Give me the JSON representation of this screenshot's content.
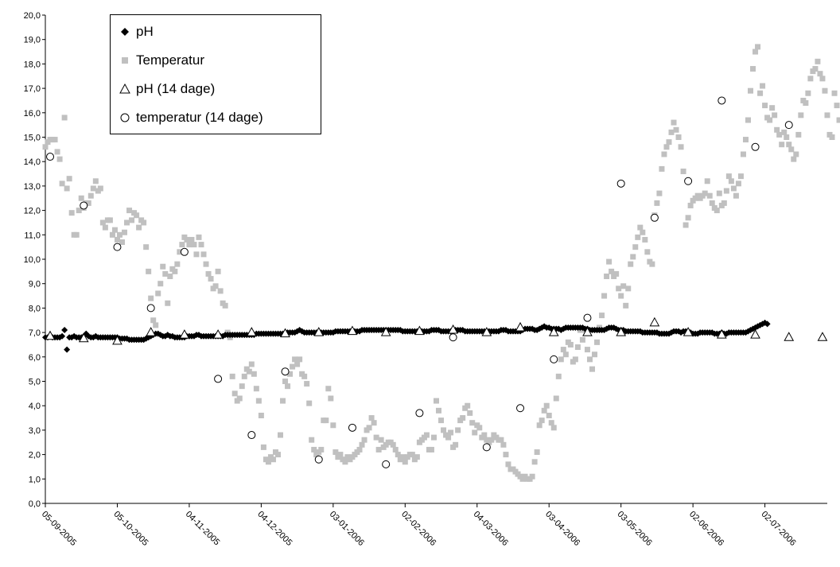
{
  "chart_data": {
    "type": "scatter",
    "ylim": [
      0,
      20
    ],
    "yticks": [
      "0,0",
      "1,0",
      "2,0",
      "3,0",
      "4,0",
      "5,0",
      "6,0",
      "7,0",
      "8,0",
      "9,0",
      "10,0",
      "11,0",
      "12,0",
      "13,0",
      "14,0",
      "15,0",
      "16,0",
      "17,0",
      "18,0",
      "19,0",
      "20,0"
    ],
    "xlim": [
      "2005-09-05",
      "2006-07-28"
    ],
    "xticks": [
      "05-09-2005",
      "05-10-2005",
      "04-11-2005",
      "04-12-2005",
      "03-01-2006",
      "02-02-2006",
      "04-03-2006",
      "03-04-2006",
      "03-05-2006",
      "02-06-2006",
      "02-07-2006"
    ],
    "legend_position": "top-left",
    "colors": {
      "ph": "#000000",
      "temperatur": "#c0c0c0",
      "ph14": "#000000",
      "temp14": "#000000"
    },
    "series": [
      {
        "name": "pH",
        "marker": "diamond",
        "x_start": "2005-09-05",
        "x_step_days": 1,
        "values": [
          6.8,
          6.8,
          6.85,
          6.8,
          6.8,
          6.8,
          6.8,
          6.85,
          7.1,
          6.3,
          6.8,
          6.8,
          6.85,
          6.8,
          6.8,
          6.8,
          6.85,
          6.95,
          6.85,
          6.8,
          6.8,
          6.85,
          6.8,
          6.8,
          6.8,
          6.8,
          6.8,
          6.8,
          6.8,
          6.8,
          6.8,
          6.75,
          6.75,
          6.75,
          6.75,
          6.7,
          6.7,
          6.7,
          6.7,
          6.7,
          6.7,
          6.7,
          6.75,
          6.8,
          6.85,
          6.9,
          6.95,
          6.95,
          6.9,
          6.85,
          6.85,
          6.9,
          6.85,
          6.85,
          6.8,
          6.8,
          6.8,
          6.8,
          6.8,
          6.85,
          6.85,
          6.85,
          6.85,
          6.9,
          6.9,
          6.85,
          6.85,
          6.85,
          6.85,
          6.85,
          6.85,
          6.85,
          6.85,
          6.85,
          6.85,
          6.9,
          6.9,
          6.9,
          6.9,
          6.9,
          6.9,
          6.9,
          6.9,
          6.9,
          6.9,
          6.9,
          6.9,
          6.9,
          6.95,
          6.95,
          6.95,
          6.95,
          6.95,
          6.95,
          6.95,
          6.95,
          6.95,
          6.95,
          6.95,
          6.95,
          6.95,
          7.0,
          7.0,
          7.0,
          7.0,
          7.05,
          7.1,
          7.05,
          7.0,
          7.0,
          7.0,
          7.0,
          7.0,
          7.0,
          7.0,
          7.0,
          7.0,
          7.0,
          7.0,
          7.0,
          7.0,
          7.05,
          7.05,
          7.05,
          7.05,
          7.05,
          7.05,
          7.05,
          7.05,
          7.05,
          7.05,
          7.05,
          7.1,
          7.1,
          7.1,
          7.1,
          7.1,
          7.1,
          7.1,
          7.1,
          7.1,
          7.1,
          7.1,
          7.1,
          7.1,
          7.1,
          7.1,
          7.1,
          7.1,
          7.05,
          7.05,
          7.05,
          7.05,
          7.05,
          7.05,
          7.05,
          7.05,
          7.05,
          7.05,
          7.05,
          7.05,
          7.1,
          7.1,
          7.1,
          7.1,
          7.05,
          7.05,
          7.05,
          7.05,
          7.05,
          7.05,
          7.1,
          7.1,
          7.1,
          7.1,
          7.05,
          7.05,
          7.05,
          7.05,
          7.05,
          7.05,
          7.05,
          7.05,
          7.05,
          7.05,
          7.05,
          7.05,
          7.05,
          7.05,
          7.05,
          7.1,
          7.1,
          7.1,
          7.05,
          7.05,
          7.05,
          7.05,
          7.05,
          7.05,
          7.1,
          7.15,
          7.15,
          7.15,
          7.15,
          7.1,
          7.1,
          7.15,
          7.2,
          7.25,
          7.2,
          7.2,
          7.15,
          7.15,
          7.15,
          7.15,
          7.1,
          7.15,
          7.2,
          7.2,
          7.2,
          7.2,
          7.2,
          7.2,
          7.2,
          7.2,
          7.15,
          7.15,
          7.1,
          7.1,
          7.1,
          7.1,
          7.1,
          7.1,
          7.1,
          7.15,
          7.2,
          7.2,
          7.2,
          7.15,
          7.1,
          7.1,
          7.1,
          7.05,
          7.05,
          7.05,
          7.05,
          7.05,
          7.05,
          7.05,
          7.0,
          7.0,
          7.0,
          7.0,
          7.0,
          7.0,
          7.0,
          6.95,
          6.95,
          6.95,
          6.95,
          6.95,
          7.0,
          7.05,
          7.05,
          7.05,
          7.0,
          7.05,
          7.05,
          7.05,
          7.0,
          6.95,
          6.95,
          6.95,
          7.0,
          7.0,
          7.0,
          7.0,
          7.0,
          7.0,
          6.95,
          6.95,
          6.95,
          7.0,
          6.95,
          6.95,
          7.0,
          7.0,
          7.0,
          7.0,
          7.0,
          7.0,
          7.0,
          7.0,
          7.05,
          7.1,
          7.15,
          7.2,
          7.25,
          7.3,
          7.35,
          7.4,
          7.35
        ]
      },
      {
        "name": "Temperatur",
        "marker": "square",
        "x_start": "2005-09-05",
        "x_step_days": 1,
        "values": [
          14.6,
          14.8,
          14.9,
          14.9,
          14.9,
          14.4,
          14.1,
          13.1,
          15.8,
          12.9,
          13.3,
          11.9,
          11.0,
          11.0,
          12.0,
          12.5,
          12.1,
          12.3,
          12.3,
          12.6,
          12.9,
          13.2,
          12.8,
          12.9,
          11.5,
          11.3,
          11.6,
          11.6,
          11.0,
          11.2,
          10.8,
          11.0,
          10.7,
          11.1,
          11.5,
          12.0,
          11.6,
          11.9,
          11.8,
          11.3,
          11.6,
          11.5,
          10.5,
          9.5,
          8.4,
          7.5,
          7.3,
          8.6,
          9.0,
          9.7,
          9.4,
          8.2,
          9.3,
          9.6,
          9.5,
          9.8,
          10.3,
          10.6,
          10.9,
          10.8,
          10.6,
          10.8,
          10.6,
          10.2,
          10.9,
          10.6,
          10.2,
          9.8,
          9.4,
          9.2,
          8.8,
          8.9,
          9.5,
          8.7,
          8.2,
          8.1,
          7.0,
          6.8,
          5.2,
          4.5,
          4.2,
          4.3,
          4.8,
          5.2,
          5.5,
          5.4,
          5.7,
          5.3,
          4.7,
          4.2,
          3.6,
          2.3,
          1.8,
          1.7,
          1.9,
          1.8,
          2.1,
          2.0,
          2.8,
          4.2,
          5.0,
          4.8,
          5.3,
          5.6,
          5.9,
          5.7,
          5.9,
          5.3,
          5.2,
          4.9,
          4.1,
          2.6,
          2.2,
          2.0,
          2.1,
          2.2,
          3.4,
          3.4,
          4.7,
          4.3,
          3.2,
          2.1,
          1.9,
          2.0,
          1.8,
          1.7,
          1.9,
          1.8,
          1.9,
          2.0,
          2.1,
          2.2,
          2.4,
          2.6,
          3.0,
          3.1,
          3.5,
          3.3,
          2.7,
          2.2,
          2.6,
          2.3,
          2.4,
          2.5,
          2.5,
          2.4,
          2.2,
          2.0,
          1.8,
          1.9,
          1.7,
          1.9,
          2.0,
          2.0,
          1.8,
          1.9,
          2.5,
          2.6,
          2.7,
          2.8,
          2.2,
          2.2,
          2.7,
          4.2,
          3.8,
          3.4,
          3.0,
          2.8,
          2.7,
          2.9,
          2.3,
          2.4,
          3.0,
          3.4,
          3.5,
          3.9,
          4.0,
          3.7,
          3.3,
          2.9,
          3.2,
          3.1,
          2.7,
          2.8,
          2.6,
          2.5,
          2.6,
          2.8,
          2.7,
          2.6,
          2.6,
          2.4,
          2.0,
          1.6,
          1.4,
          1.4,
          1.3,
          1.2,
          1.1,
          1.0,
          1.1,
          1.0,
          1.0,
          1.1,
          1.7,
          2.1,
          3.2,
          3.4,
          3.8,
          4.0,
          3.6,
          3.3,
          3.1,
          4.3,
          5.2,
          5.9,
          6.3,
          6.1,
          6.6,
          6.5,
          5.8,
          5.9,
          6.4,
          7.1,
          6.7,
          7.1,
          6.3,
          5.9,
          5.5,
          6.1,
          6.6,
          7.2,
          7.7,
          8.5,
          9.3,
          9.9,
          9.5,
          9.3,
          9.4,
          8.8,
          8.5,
          8.9,
          8.1,
          8.8,
          9.8,
          10.1,
          10.5,
          10.9,
          11.3,
          11.1,
          10.8,
          10.3,
          9.9,
          9.8,
          11.8,
          12.3,
          12.7,
          13.7,
          14.3,
          14.6,
          14.8,
          15.2,
          15.6,
          15.3,
          15.0,
          14.6,
          13.6,
          11.4,
          11.7,
          12.2,
          12.4,
          12.5,
          12.6,
          12.5,
          12.6,
          12.7,
          13.2,
          12.6,
          12.3,
          12.1,
          12.0,
          12.7,
          12.2,
          12.3,
          12.8,
          13.4,
          13.2,
          12.9,
          12.6,
          13.1,
          13.4,
          14.3,
          14.9,
          15.7,
          16.9,
          17.8,
          18.5,
          18.7,
          16.8,
          17.1,
          16.3,
          15.8,
          15.7,
          16.2,
          15.9,
          15.3,
          15.1,
          14.7,
          15.2,
          15.0,
          14.7,
          14.5,
          14.1,
          14.3,
          15.1,
          15.9,
          16.5,
          16.4,
          16.8,
          17.4,
          17.7,
          17.8,
          18.1,
          17.6,
          17.4,
          16.9,
          15.9,
          15.1,
          15.0,
          16.8,
          16.3,
          15.7
        ]
      },
      {
        "name": "pH (14 dage)",
        "marker": "triangle",
        "x_start": "2005-09-07",
        "x_step_days": 14,
        "values": [
          6.85,
          6.75,
          6.65,
          7.0,
          6.9,
          6.9,
          7.0,
          6.95,
          7.0,
          7.05,
          7.0,
          7.05,
          7.1,
          7.0,
          7.2,
          7.0,
          7.0,
          7.0,
          7.4,
          7.0,
          6.9,
          6.9,
          6.8,
          6.8,
          6.8
        ]
      },
      {
        "name": "temperatur (14 dage)",
        "marker": "circle",
        "x_start": "2005-09-07",
        "x_step_days": 14,
        "values": [
          14.2,
          12.2,
          10.5,
          8.0,
          10.3,
          5.1,
          2.8,
          5.4,
          1.8,
          3.1,
          1.6,
          3.7,
          6.8,
          2.3,
          3.9,
          5.9,
          7.6,
          13.1,
          11.7,
          13.2,
          16.5,
          14.6,
          15.5
        ]
      }
    ]
  }
}
